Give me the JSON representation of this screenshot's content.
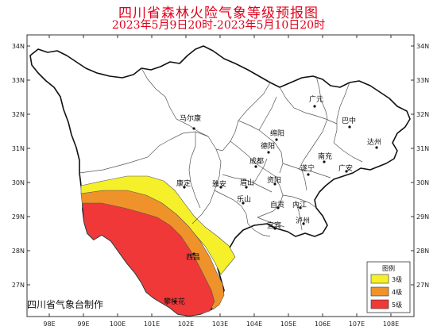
{
  "title": "四川省森林火险气象等级预报图",
  "subtitle": "2023年5月9日20时-2023年5月10日20时",
  "lat_ticks": [
    "34N",
    "33N",
    "32N",
    "31N",
    "30N",
    "29N",
    "28N",
    "27N"
  ],
  "lon_ticks": [
    "98E",
    "99E",
    "100E",
    "101E",
    "102E",
    "103E",
    "104E",
    "105E",
    "106E",
    "107E",
    "108E"
  ],
  "cities": [
    {
      "name": "马尔康"
    },
    {
      "name": "广元"
    },
    {
      "name": "巴中"
    },
    {
      "name": "绵阳"
    },
    {
      "name": "达州"
    },
    {
      "name": "德阳"
    },
    {
      "name": "南充"
    },
    {
      "name": "成都"
    },
    {
      "name": "遂宁"
    },
    {
      "name": "广安"
    },
    {
      "name": "康定"
    },
    {
      "name": "雅安"
    },
    {
      "name": "眉山"
    },
    {
      "name": "资阳"
    },
    {
      "name": "乐山"
    },
    {
      "name": "自贡"
    },
    {
      "name": "内江"
    },
    {
      "name": "宜宾"
    },
    {
      "name": "泸州"
    },
    {
      "name": "西昌"
    },
    {
      "name": "攀枝花"
    }
  ],
  "legend": {
    "title": "图例",
    "items": [
      {
        "label": "3级",
        "color": "#f5f02a"
      },
      {
        "label": "4级",
        "color": "#f0922a"
      },
      {
        "label": "5级",
        "color": "#f03838"
      }
    ]
  },
  "credit": "四川省气象台制作"
}
